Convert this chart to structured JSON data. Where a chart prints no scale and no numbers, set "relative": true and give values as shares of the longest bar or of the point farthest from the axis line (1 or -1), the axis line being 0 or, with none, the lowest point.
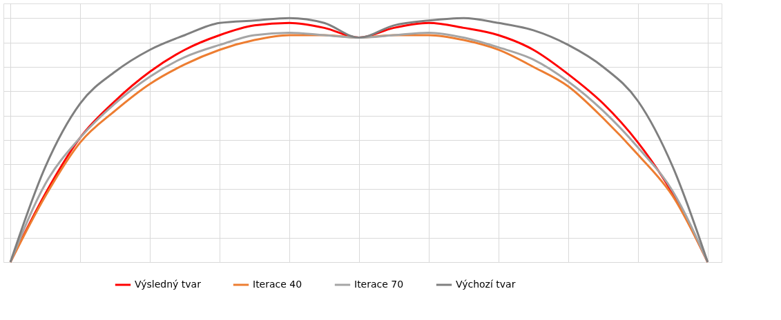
{
  "chart_data": {
    "type": "line",
    "relative": true,
    "grid": true,
    "legend": "bottom",
    "line_style": "solid",
    "marker": "none",
    "categories": [
      null,
      null,
      null,
      null,
      null,
      null,
      null,
      null,
      null,
      null,
      null,
      null,
      null,
      null,
      null,
      null,
      null,
      null,
      null,
      null,
      null
    ],
    "series": [
      {
        "name": "Výsledný tvar",
        "color": "#ff0000",
        "values": [
          0,
          0.28,
          0.51,
          0.66,
          0.78,
          0.87,
          0.93,
          0.97,
          0.98,
          0.96,
          0.92,
          0.96,
          0.98,
          0.96,
          0.93,
          0.87,
          0.77,
          0.65,
          0.49,
          0.28,
          0
        ]
      },
      {
        "name": "Iterace 40",
        "color": "#ed7d31",
        "values": [
          0,
          0.27,
          0.49,
          0.62,
          0.73,
          0.81,
          0.87,
          0.91,
          0.93,
          0.93,
          0.92,
          0.93,
          0.93,
          0.91,
          0.87,
          0.8,
          0.72,
          0.59,
          0.44,
          0.27,
          0
        ]
      },
      {
        "name": "Iterace 70",
        "color": "#a5a5a5",
        "values": [
          0,
          0.32,
          0.51,
          0.65,
          0.76,
          0.84,
          0.89,
          0.93,
          0.94,
          0.93,
          0.92,
          0.93,
          0.94,
          0.92,
          0.88,
          0.83,
          0.74,
          0.62,
          0.47,
          0.29,
          0
        ]
      },
      {
        "name": "Výchozí tvar",
        "color": "#7f7f7f",
        "values": [
          0,
          0.39,
          0.65,
          0.78,
          0.87,
          0.93,
          0.98,
          0.99,
          1.0,
          0.98,
          0.92,
          0.97,
          0.99,
          1.0,
          0.98,
          0.95,
          0.89,
          0.8,
          0.66,
          0.39,
          0
        ]
      }
    ]
  }
}
